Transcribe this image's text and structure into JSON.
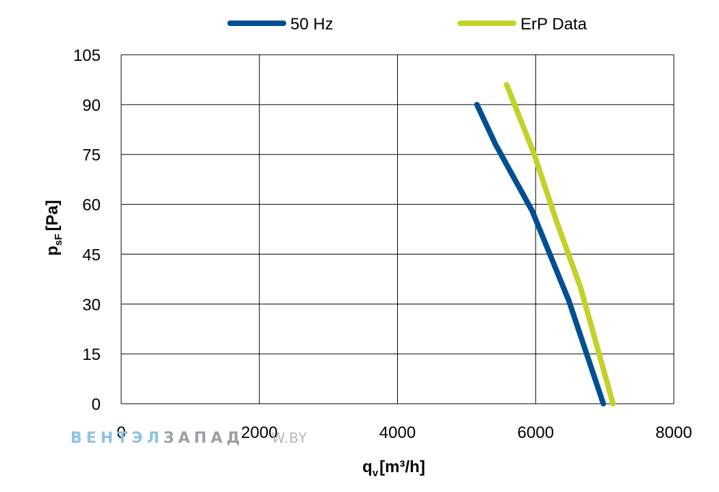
{
  "watermark": {
    "part1": "ВЕНТЭЛ",
    "part2": "ЗАПАД",
    "part3": "W.BY",
    "color1": "#8ec3e8",
    "color2": "#9aa0a6",
    "color3": "#b5b9bd"
  },
  "chart_data": {
    "type": "line",
    "title": "",
    "ylabel": "p",
    "ylabel_sub": "sF",
    "ylabel_unit": "[Pa]",
    "xlabel": "q",
    "xlabel_sub": "v",
    "xlabel_unit": "[m³/h]",
    "xlim": [
      0,
      8000
    ],
    "ylim": [
      0,
      105
    ],
    "x_ticks": [
      0,
      2000,
      4000,
      6000,
      8000
    ],
    "y_ticks": [
      0,
      15,
      30,
      45,
      60,
      75,
      90,
      105
    ],
    "grid": true,
    "legend_position": "top-center",
    "series": [
      {
        "name": "50 Hz",
        "color": "#004f93",
        "points": [
          [
            5150,
            90
          ],
          [
            5420,
            78
          ],
          [
            5950,
            58
          ],
          [
            6480,
            31
          ],
          [
            6980,
            0
          ]
        ]
      },
      {
        "name": "ErP Data",
        "color": "#c3d22a",
        "points": [
          [
            5580,
            96
          ],
          [
            5980,
            75
          ],
          [
            6300,
            55
          ],
          [
            6650,
            35
          ],
          [
            7120,
            0
          ]
        ]
      }
    ]
  }
}
